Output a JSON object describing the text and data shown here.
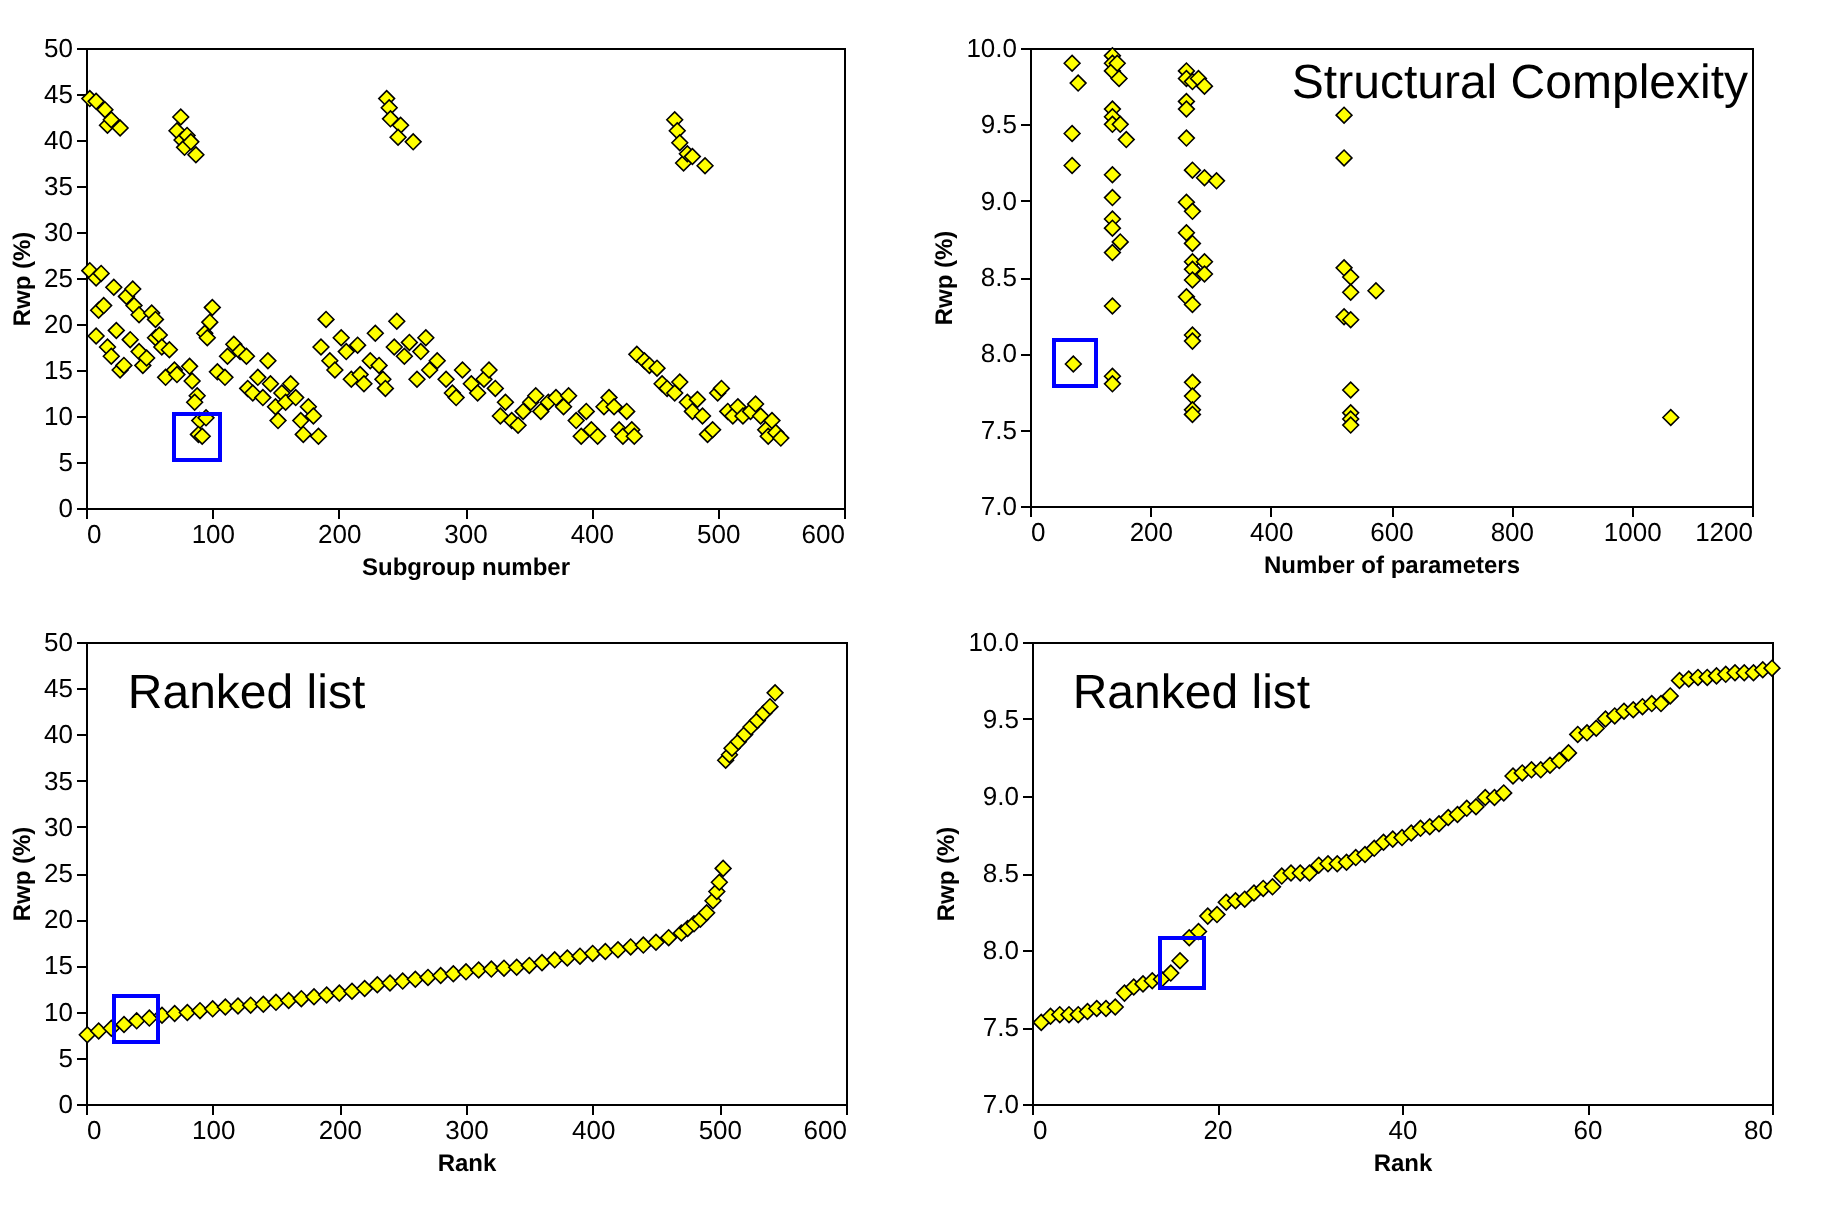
{
  "chart_data": [
    {
      "type": "scatter",
      "xlabel": "Subgroup number",
      "ylabel": "Rwp (%)",
      "marker": "diamond",
      "xlim": [
        0,
        600
      ],
      "xticks": [
        0,
        100,
        200,
        300,
        400,
        500,
        600
      ],
      "ylim": [
        0,
        50
      ],
      "yticks": [
        0,
        5,
        10,
        15,
        20,
        25,
        30,
        35,
        40,
        45,
        50
      ],
      "x": [
        3,
        8,
        15,
        17,
        20,
        27,
        75,
        72,
        76,
        78,
        80,
        83,
        87,
        238,
        240,
        241,
        249,
        247,
        259,
        466,
        468,
        470,
        473,
        476,
        480,
        490,
        3,
        8,
        12,
        10,
        14,
        8,
        17,
        20,
        24,
        22,
        27,
        30,
        32,
        35,
        37,
        38,
        42,
        42,
        45,
        48,
        52,
        55,
        55,
        58,
        60,
        63,
        66,
        70,
        72,
        82,
        84,
        88,
        86,
        90,
        89,
        92,
        95,
        94,
        96,
        98,
        100,
        104,
        110,
        112,
        117,
        122,
        127,
        128,
        132,
        136,
        140,
        144,
        146,
        150,
        152,
        155,
        158,
        162,
        166,
        170,
        172,
        176,
        180,
        184,
        186,
        190,
        193,
        197,
        202,
        206,
        210,
        215,
        217,
        220,
        225,
        229,
        232,
        235,
        237,
        244,
        246,
        252,
        256,
        262,
        265,
        269,
        272,
        278,
        285,
        290,
        293,
        298,
        305,
        310,
        315,
        319,
        324,
        328,
        332,
        337,
        342,
        346,
        352,
        356,
        360,
        366,
        372,
        378,
        382,
        388,
        392,
        396,
        400,
        405,
        410,
        414,
        418,
        422,
        425,
        428,
        432,
        434,
        436,
        442,
        446,
        452,
        456,
        460,
        466,
        470,
        476,
        480,
        484,
        488,
        492,
        496,
        500,
        503,
        508,
        512,
        516,
        520,
        526,
        530,
        534,
        538,
        540,
        543,
        546,
        550
      ],
      "series": [
        {
          "color": "#ffff00",
          "values": [
            44.5,
            44.2,
            43.3,
            41.6,
            42.2,
            41.3,
            42.5,
            41,
            40,
            39.2,
            40.5,
            39.8,
            38.4,
            44.5,
            43.5,
            42.3,
            41.6,
            40.3,
            39.8,
            42.2,
            41,
            39.7,
            37.5,
            38.5,
            38.2,
            37.2,
            25.8,
            25,
            25.5,
            21.5,
            22,
            18.7,
            17.5,
            16.5,
            19.3,
            24,
            15,
            15.5,
            23,
            18.3,
            23.8,
            22,
            21,
            17,
            15.5,
            16.3,
            21.2,
            20.5,
            18.5,
            18.8,
            17.5,
            14.2,
            17.2,
            15,
            14.5,
            15.4,
            13.8,
            12.2,
            11.5,
            9.5,
            8,
            7.8,
            9.8,
            19,
            18.5,
            20.2,
            21.8,
            14.8,
            14.2,
            16.5,
            17.8,
            17,
            16.5,
            13,
            12.5,
            14.2,
            12,
            16,
            13.5,
            11,
            9.5,
            12.5,
            11.5,
            13.5,
            12,
            9.5,
            8,
            11,
            10,
            7.8,
            17.5,
            20.5,
            16,
            15,
            18.5,
            17,
            14,
            17.7,
            14.5,
            13.5,
            16,
            19,
            15.5,
            14,
            13,
            17.5,
            20.3,
            16.5,
            18,
            14,
            17,
            18.5,
            15,
            16,
            14,
            12.5,
            12,
            15,
            13.5,
            12.5,
            14,
            15,
            13,
            10,
            11.5,
            9.5,
            9,
            10.5,
            11.5,
            12.2,
            10.5,
            11.5,
            12,
            11,
            12.2,
            9.5,
            7.8,
            10.5,
            8.5,
            7.8,
            11,
            12,
            11,
            8.5,
            7.8,
            10.5,
            8.5,
            7.8,
            16.7,
            16,
            15.5,
            15.2,
            13.5,
            13,
            12.5,
            13.7,
            11.5,
            10.5,
            11.8,
            10,
            8,
            8.5,
            12.5,
            13,
            10.5,
            10,
            11,
            10,
            10.5,
            11.3,
            10,
            8.5,
            7.8,
            9.5,
            8.2,
            7.6
          ]
        }
      ]
    },
    {
      "type": "scatter",
      "xlabel": "Number of parameters",
      "ylabel": "Rwp (%)",
      "marker": "diamond",
      "annotations": [
        "Structural Complexity"
      ],
      "xlim": [
        0,
        1200
      ],
      "xticks": [
        0,
        200,
        400,
        600,
        800,
        1000,
        1200
      ],
      "ylim": [
        7,
        10
      ],
      "yticks": [
        {
          "value": 7,
          "label": "7.0"
        },
        7.5,
        {
          "value": 8,
          "label": "8.0"
        },
        8.5,
        {
          "value": 9,
          "label": "9.0"
        },
        9.5,
        {
          "value": 10,
          "label": "10.0"
        }
      ],
      "x": [
        70,
        80,
        70,
        70,
        72,
        137,
        137,
        137,
        137,
        137,
        137,
        137,
        137,
        137,
        137,
        137,
        137,
        137,
        137,
        145,
        148,
        150,
        160,
        150,
        260,
        260,
        260,
        260,
        260,
        260,
        260,
        260,
        270,
        270,
        270,
        270,
        270,
        270,
        270,
        270,
        270,
        270,
        270,
        270,
        270,
        270,
        280,
        290,
        290,
        310,
        290,
        290,
        522,
        522,
        522,
        522,
        533,
        533,
        533,
        533,
        533,
        533,
        533,
        575,
        1065
      ],
      "series": [
        {
          "color": "#ffff00",
          "values": [
            9.9,
            9.77,
            9.44,
            9.23,
            7.93,
            9.95,
            9.9,
            9.85,
            9.6,
            9.55,
            9.5,
            9.17,
            9.02,
            8.88,
            8.82,
            8.66,
            8.31,
            7.85,
            7.8,
            9.9,
            9.8,
            9.5,
            9.4,
            8.73,
            9.85,
            9.8,
            9.65,
            9.6,
            9.41,
            8.99,
            8.79,
            8.37,
            9.78,
            9.2,
            8.93,
            8.72,
            8.6,
            8.55,
            8.48,
            8.32,
            8.12,
            8.08,
            7.81,
            7.72,
            7.63,
            7.6,
            9.8,
            9.75,
            9.15,
            9.13,
            8.6,
            8.52,
            9.56,
            9.28,
            8.56,
            8.24,
            8.5,
            8.4,
            8.22,
            7.76,
            7.61,
            7.57,
            7.53,
            8.41,
            7.58
          ]
        }
      ]
    },
    {
      "type": "scatter",
      "xlabel": "Rank",
      "ylabel": "Rwp (%)",
      "marker": "diamond",
      "annotations": [
        "Ranked list"
      ],
      "xlim": [
        0,
        600
      ],
      "xticks": [
        0,
        100,
        200,
        300,
        400,
        500,
        600
      ],
      "ylim": [
        0,
        50
      ],
      "yticks": [
        0,
        5,
        10,
        15,
        20,
        25,
        30,
        35,
        40,
        45,
        50
      ],
      "x": [
        1,
        10,
        20,
        30,
        40,
        50,
        60,
        70,
        80,
        90,
        100,
        110,
        120,
        130,
        140,
        150,
        160,
        170,
        180,
        190,
        200,
        210,
        220,
        230,
        240,
        250,
        260,
        270,
        280,
        290,
        300,
        310,
        320,
        330,
        340,
        350,
        360,
        370,
        380,
        390,
        400,
        410,
        420,
        430,
        440,
        450,
        460,
        470,
        475,
        480,
        485,
        490,
        495,
        498,
        500,
        503,
        505,
        508,
        510,
        515,
        520,
        525,
        530,
        535,
        540,
        544
      ],
      "series": [
        {
          "color": "#ffff00",
          "values": [
            7.5,
            7.9,
            8.2,
            8.6,
            9,
            9.3,
            9.6,
            9.8,
            9.9,
            10.1,
            10.3,
            10.5,
            10.6,
            10.7,
            10.8,
            11,
            11.2,
            11.4,
            11.6,
            11.8,
            12,
            12.2,
            12.5,
            12.9,
            13.1,
            13.3,
            13.5,
            13.7,
            13.9,
            14.1,
            14.3,
            14.5,
            14.6,
            14.7,
            14.8,
            15,
            15.3,
            15.6,
            15.8,
            16,
            16.3,
            16.5,
            16.7,
            17,
            17.2,
            17.5,
            18,
            18.5,
            19,
            19.5,
            20,
            20.7,
            22,
            23,
            24,
            25.5,
            37.2,
            37.8,
            38.5,
            39.2,
            40,
            40.8,
            41.5,
            42.3,
            43,
            44.5
          ]
        }
      ]
    },
    {
      "type": "scatter",
      "xlabel": "Rank",
      "ylabel": "Rwp (%)",
      "marker": "diamond",
      "annotations": [
        "Ranked list"
      ],
      "xlim": [
        0,
        80
      ],
      "xticks": [
        0,
        20,
        40,
        60,
        80
      ],
      "ylim": [
        7,
        10
      ],
      "yticks": [
        {
          "value": 7,
          "label": "7.0"
        },
        7.5,
        {
          "value": 8,
          "label": "8.0"
        },
        8.5,
        {
          "value": 9,
          "label": "9.0"
        },
        9.5,
        {
          "value": 10,
          "label": "10.0"
        }
      ],
      "x": [
        1,
        2,
        3,
        4,
        5,
        6,
        7,
        8,
        9,
        10,
        11,
        12,
        13,
        14,
        15,
        16,
        17,
        18,
        19,
        20,
        21,
        22,
        23,
        24,
        25,
        26,
        27,
        28,
        29,
        30,
        31,
        32,
        33,
        34,
        35,
        36,
        37,
        38,
        39,
        40,
        41,
        42,
        43,
        44,
        45,
        46,
        47,
        48,
        49,
        50,
        51,
        52,
        53,
        54,
        55,
        56,
        57,
        58,
        59,
        60,
        61,
        62,
        63,
        64,
        65,
        66,
        67,
        68,
        69,
        70,
        71,
        72,
        73,
        74,
        75,
        76,
        77,
        78,
        79,
        80
      ],
      "series": [
        {
          "color": "#ffff00",
          "values": [
            7.53,
            7.57,
            7.58,
            7.58,
            7.58,
            7.6,
            7.62,
            7.62,
            7.63,
            7.72,
            7.76,
            7.78,
            7.8,
            7.81,
            7.85,
            7.93,
            8.08,
            8.12,
            8.22,
            8.23,
            8.31,
            8.32,
            8.33,
            8.37,
            8.4,
            8.41,
            8.48,
            8.5,
            8.5,
            8.5,
            8.55,
            8.56,
            8.56,
            8.57,
            8.6,
            8.62,
            8.66,
            8.7,
            8.72,
            8.73,
            8.76,
            8.79,
            8.8,
            8.82,
            8.86,
            8.88,
            8.92,
            8.93,
            8.99,
            8.99,
            9.02,
            9.13,
            9.15,
            9.17,
            9.17,
            9.2,
            9.23,
            9.28,
            9.4,
            9.41,
            9.44,
            9.5,
            9.52,
            9.55,
            9.56,
            9.58,
            9.6,
            9.6,
            9.65,
            9.75,
            9.76,
            9.77,
            9.77,
            9.78,
            9.79,
            9.8,
            9.8,
            9.8,
            9.82,
            9.83
          ]
        }
      ]
    }
  ]
}
